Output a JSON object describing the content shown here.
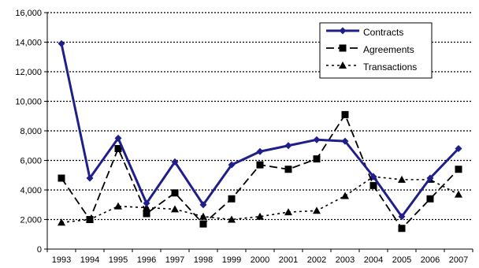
{
  "chart_data": {
    "type": "line",
    "title": "",
    "xlabel": "",
    "ylabel": "",
    "categories": [
      "1993",
      "1994",
      "1995",
      "1996",
      "1997",
      "1998",
      "1999",
      "2000",
      "2001",
      "2002",
      "2003",
      "2004",
      "2005",
      "2006",
      "2007"
    ],
    "ylim": [
      0,
      16000
    ],
    "yticks": [
      0,
      2000,
      4000,
      6000,
      8000,
      10000,
      12000,
      14000,
      16000
    ],
    "ytick_labels": [
      "0",
      "2,000",
      "4,000",
      "6,000",
      "8,000",
      "10,000",
      "12,000",
      "14,000",
      "16,000"
    ],
    "grid": "horizontal dotted",
    "legend_position": "top-right",
    "series": [
      {
        "name": "Contracts",
        "color": "#1f1f8c",
        "line_style": "solid",
        "marker": "diamond",
        "values": [
          13900,
          4800,
          7500,
          3100,
          5900,
          3000,
          5700,
          6600,
          7000,
          7400,
          7300,
          4900,
          2200,
          4800,
          6800
        ]
      },
      {
        "name": "Agreements",
        "color": "#000000",
        "line_style": "dashed",
        "marker": "square",
        "values": [
          4800,
          2000,
          6800,
          2400,
          3800,
          1700,
          3400,
          5700,
          5400,
          6100,
          9100,
          4300,
          1400,
          3400,
          5400
        ]
      },
      {
        "name": "Transactions",
        "color": "#000000",
        "line_style": "dotted",
        "marker": "triangle",
        "values": [
          1800,
          2000,
          2900,
          2800,
          2700,
          2200,
          2000,
          2200,
          2500,
          2600,
          3600,
          4900,
          4700,
          4700,
          3700
        ]
      }
    ]
  }
}
